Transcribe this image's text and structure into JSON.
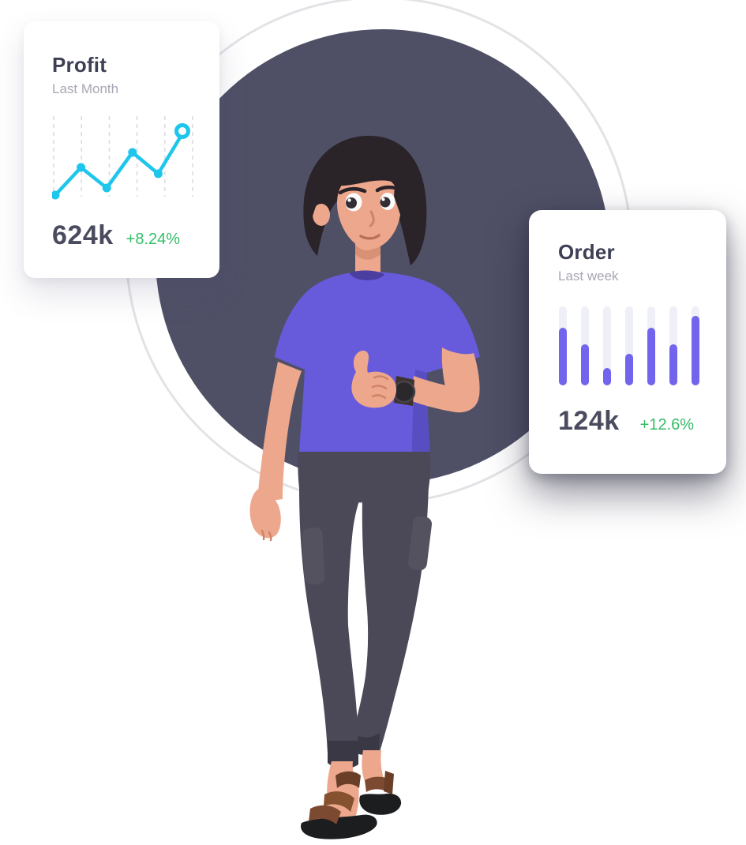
{
  "backdrop": {
    "circle_color": "#4F5066",
    "ring_color": "#E3E3E7",
    "page_background": "#FFFFFF"
  },
  "profit_card": {
    "title": "Profit",
    "subtitle": "Last Month",
    "value": "624k",
    "change": "+8.24%",
    "accent_color": "#1EC6EC",
    "change_color": "#35BD68"
  },
  "order_card": {
    "title": "Order",
    "subtitle": "Last week",
    "value": "124k",
    "change": "+12.6%",
    "accent_color": "#7264EC",
    "change_color": "#35BD68"
  },
  "chart_data": [
    {
      "type": "line",
      "title": "Profit",
      "subtitle": "Last Month",
      "summary_value": "624k",
      "change": "+8.24%",
      "values": [
        2,
        37,
        11,
        56,
        29,
        83
      ],
      "unit": "percent-of-chart-height",
      "x_range": [
        1,
        6
      ],
      "gridlines": 6,
      "grid_style": "dashed-vertical",
      "grid_color": "#DBDCE2",
      "line_color": "#1EC6EC",
      "last_point_style": "open-ring",
      "legend": "none"
    },
    {
      "type": "bar",
      "title": "Order",
      "subtitle": "Last week",
      "summary_value": "124k",
      "change": "+12.6%",
      "values": [
        73,
        52,
        22,
        40,
        73,
        52,
        88
      ],
      "unit": "percent-of-track-height",
      "categories": [
        "1",
        "2",
        "3",
        "4",
        "5",
        "6",
        "7"
      ],
      "bar_color": "#7264EC",
      "track_color": "#EFF0F7",
      "bar_style": "rounded-pill-on-track",
      "legend": "none"
    }
  ],
  "character": {
    "description": "3d cartoon man standing with thumbs up, wearing watch",
    "pose": "thumbs-up",
    "skin_color": "#EDA78C",
    "hair_color": "#2A2328",
    "shirt_color": "#675BDC",
    "pants_color": "#4B4857",
    "sandal_color": "#7C4A30",
    "sole_color": "#1C1D1F",
    "watch_color": "#2B282C"
  }
}
